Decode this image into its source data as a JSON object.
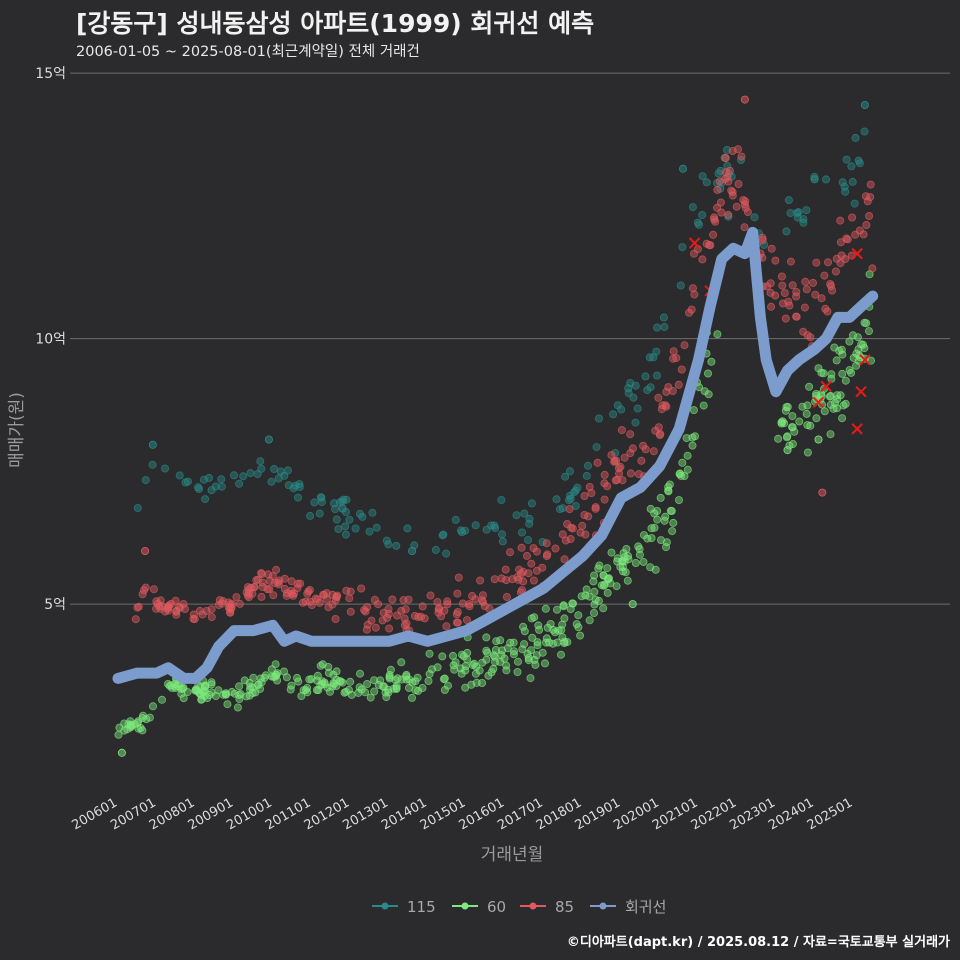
{
  "header": {
    "title": "[강동구] 성내동삼성 아파트(1999) 회귀선 예측",
    "subtitle": "2006-01-05 ~ 2025-08-01(최근계약일) 전체 거래건"
  },
  "footer": {
    "credit": "©디아파트(dapt.kr) / 2025.08.12 / 자료=국토교통부 실거래가"
  },
  "colors": {
    "background": "#2b2b2d",
    "s115": "#2b8a88",
    "s60": "#7de87d",
    "s85": "#e05a5f",
    "regression": "#7b9ccc",
    "cancel_mark": "#e81a1a",
    "grid": "#6e6e6e"
  },
  "chart_data": {
    "type": "scatter",
    "xlabel": "거래년월",
    "ylabel": "매매가(원)",
    "ylim_eok": [
      2.0,
      15.0
    ],
    "y_ticks": [
      {
        "value": 5,
        "label": "5억"
      },
      {
        "value": 10,
        "label": "10억"
      },
      {
        "value": 15,
        "label": "15억"
      }
    ],
    "x_ticks": [
      "200601",
      "200701",
      "200801",
      "200901",
      "201001",
      "201101",
      "201201",
      "201301",
      "201401",
      "201501",
      "201601",
      "201701",
      "201801",
      "201901",
      "202001",
      "202101",
      "202201",
      "202301",
      "202401",
      "202501"
    ],
    "legend_position": "bottom",
    "legend": [
      "115",
      "60",
      "85",
      "회귀선"
    ],
    "series": [
      {
        "name": "115",
        "band": [
          [
            2006.4,
            6.6
          ],
          [
            2006.7,
            7.4
          ],
          [
            2007.0,
            7.6
          ],
          [
            2008.0,
            7.2
          ],
          [
            2009.0,
            7.2
          ],
          [
            2009.5,
            7.6
          ],
          [
            2010.0,
            7.4
          ],
          [
            2011.0,
            7.0
          ],
          [
            2012.0,
            6.6
          ],
          [
            2013.0,
            6.3
          ],
          [
            2014.0,
            6.3
          ],
          [
            2015.0,
            6.4
          ],
          [
            2016.0,
            6.4
          ],
          [
            2017.0,
            6.6
          ],
          [
            2018.0,
            7.4
          ],
          [
            2019.0,
            8.6
          ],
          [
            2020.0,
            9.6
          ],
          [
            2021.0,
            12.8
          ],
          [
            2021.5,
            13.2
          ],
          [
            2022.0,
            12.8
          ],
          [
            2023.0,
            12.0
          ],
          [
            2024.0,
            12.6
          ],
          [
            2025.0,
            13.0
          ],
          [
            2025.5,
            14.0
          ]
        ],
        "extra_points": [
          [
            2006.9,
            8.0
          ],
          [
            2009.9,
            8.1
          ],
          [
            2011.8,
            6.8
          ],
          [
            2013.6,
            6.0
          ],
          [
            2020.6,
            13.2
          ],
          [
            2024.0,
            13.0
          ],
          [
            2025.3,
            14.4
          ]
        ]
      },
      {
        "name": "60",
        "band": [
          [
            2006.0,
            2.7
          ],
          [
            2006.6,
            2.7
          ],
          [
            2007.0,
            3.2
          ],
          [
            2007.5,
            3.5
          ],
          [
            2008.0,
            3.4
          ],
          [
            2009.0,
            3.2
          ],
          [
            2009.5,
            3.5
          ],
          [
            2010.0,
            3.6
          ],
          [
            2011.0,
            3.5
          ],
          [
            2012.0,
            3.5
          ],
          [
            2013.0,
            3.5
          ],
          [
            2014.0,
            3.6
          ],
          [
            2015.0,
            3.8
          ],
          [
            2016.0,
            4.1
          ],
          [
            2017.0,
            4.3
          ],
          [
            2017.6,
            4.5
          ],
          [
            2018.0,
            5.0
          ],
          [
            2019.0,
            5.8
          ],
          [
            2020.0,
            6.4
          ],
          [
            2020.5,
            7.4
          ],
          [
            2021.0,
            8.8
          ],
          [
            2021.5,
            10.6
          ],
          [
            2022.0,
            null
          ],
          [
            2023.0,
            8.2
          ],
          [
            2024.0,
            8.8
          ],
          [
            2025.0,
            9.4
          ],
          [
            2025.5,
            10.4
          ]
        ],
        "extra_points": [
          [
            2006.1,
            2.2
          ],
          [
            2019.3,
            5.0
          ],
          [
            2023.3,
            7.9
          ],
          [
            2024.1,
            8.1
          ]
        ]
      },
      {
        "name": "85",
        "band": [
          [
            2006.4,
            4.6
          ],
          [
            2006.7,
            5.4
          ],
          [
            2007.0,
            5.0
          ],
          [
            2008.0,
            4.8
          ],
          [
            2009.0,
            5.0
          ],
          [
            2009.5,
            5.3
          ],
          [
            2010.0,
            5.4
          ],
          [
            2011.0,
            5.2
          ],
          [
            2012.0,
            4.9
          ],
          [
            2013.0,
            4.8
          ],
          [
            2014.0,
            4.9
          ],
          [
            2015.0,
            5.0
          ],
          [
            2016.0,
            5.4
          ],
          [
            2017.0,
            5.8
          ],
          [
            2018.0,
            6.6
          ],
          [
            2019.0,
            7.6
          ],
          [
            2020.0,
            8.4
          ],
          [
            2020.5,
            9.6
          ],
          [
            2021.0,
            11.6
          ],
          [
            2021.5,
            12.6
          ],
          [
            2022.0,
            13.0
          ],
          [
            2023.0,
            10.8
          ],
          [
            2024.0,
            10.8
          ],
          [
            2025.0,
            11.8
          ],
          [
            2025.5,
            12.2
          ]
        ],
        "extra_points": [
          [
            2006.7,
            6.0
          ],
          [
            2022.2,
            14.5
          ],
          [
            2024.2,
            7.1
          ],
          [
            2021.7,
            13.4
          ]
        ]
      }
    ],
    "cancelled_points": [
      [
        2020.9,
        11.8
      ],
      [
        2021.3,
        10.9
      ],
      [
        2024.1,
        8.8
      ],
      [
        2024.3,
        9.1
      ],
      [
        2025.1,
        11.6
      ],
      [
        2025.3,
        9.6
      ],
      [
        2025.2,
        9.0
      ],
      [
        2025.1,
        8.3
      ]
    ],
    "regression": {
      "name": "회귀선",
      "x": [
        2006.0,
        2006.5,
        2007.0,
        2007.3,
        2007.7,
        2008.0,
        2008.3,
        2008.6,
        2009.0,
        2009.5,
        2010.0,
        2010.3,
        2010.6,
        2011.0,
        2011.5,
        2012.0,
        2012.5,
        2013.0,
        2013.5,
        2014.0,
        2014.5,
        2015.0,
        2015.5,
        2016.0,
        2016.5,
        2017.0,
        2017.5,
        2018.0,
        2018.5,
        2019.0,
        2019.5,
        2020.0,
        2020.5,
        2021.0,
        2021.3,
        2021.6,
        2021.9,
        2022.2,
        2022.4,
        2022.6,
        2022.75,
        2023.0,
        2023.3,
        2023.6,
        2024.0,
        2024.3,
        2024.6,
        2024.9,
        2025.2,
        2025.5
      ],
      "y": [
        3.6,
        3.7,
        3.7,
        3.8,
        3.6,
        3.6,
        3.8,
        4.2,
        4.5,
        4.5,
        4.6,
        4.3,
        4.4,
        4.3,
        4.3,
        4.3,
        4.3,
        4.3,
        4.4,
        4.3,
        4.4,
        4.5,
        4.7,
        4.9,
        5.1,
        5.3,
        5.6,
        5.9,
        6.3,
        7.0,
        7.2,
        7.6,
        8.3,
        9.6,
        10.6,
        11.5,
        11.7,
        11.6,
        12.0,
        10.4,
        9.6,
        9.0,
        9.4,
        9.6,
        9.8,
        10.0,
        10.4,
        10.4,
        10.6,
        10.8
      ]
    }
  }
}
